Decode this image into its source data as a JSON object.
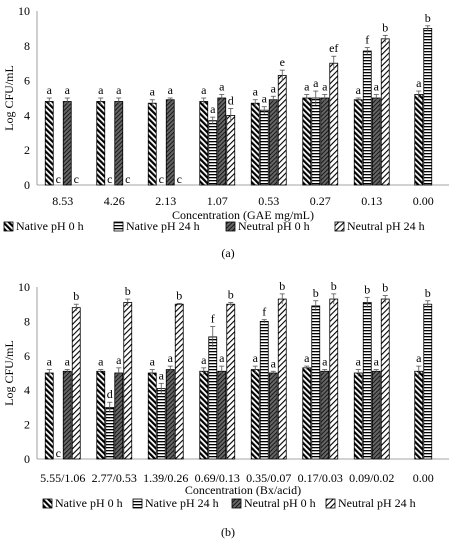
{
  "chart_data": [
    {
      "type": "bar",
      "panel_label": "(a)",
      "ylabel": "Log CFU/mL",
      "xlabel": "Concentration (GAE mg/mL)",
      "ylim": [
        0,
        10
      ],
      "yticks": [
        "0",
        "2",
        "4",
        "6",
        "8",
        "10"
      ],
      "categories": [
        "8.53",
        "4.26",
        "2.13",
        "1.07",
        "0.53",
        "0.27",
        "0.13",
        "0.00"
      ],
      "legend_position": "bottom",
      "series": [
        {
          "name": "Native pH 0 h",
          "pattern": "native0",
          "values": [
            4.8,
            4.8,
            4.7,
            4.8,
            4.7,
            5.0,
            4.9,
            5.2
          ],
          "errors": [
            0.2,
            0.2,
            0.2,
            0.2,
            0.2,
            0.2,
            0.1,
            0.2
          ],
          "labels": [
            "a",
            "a",
            "a",
            "a",
            "a",
            "a",
            "a",
            "a"
          ]
        },
        {
          "name": "Native pH 24 h",
          "pattern": "native24",
          "values": [
            0,
            0,
            0,
            3.7,
            4.3,
            5.0,
            7.7,
            9.0
          ],
          "errors": [
            0,
            0,
            0,
            0.2,
            0.2,
            0.4,
            0.2,
            0.15
          ],
          "labels": [
            "c",
            "c",
            "c",
            "a",
            "a",
            "a",
            "f",
            "b"
          ]
        },
        {
          "name": "Neutral pH 0 h",
          "pattern": "neutral0",
          "values": [
            4.8,
            4.8,
            4.9,
            5.0,
            4.9,
            5.0,
            5.0,
            null
          ],
          "errors": [
            0.2,
            0.2,
            0.1,
            0.2,
            0.2,
            0.2,
            0.2,
            0
          ],
          "labels": [
            "a",
            "a",
            "a",
            "a",
            "a",
            "a",
            "a",
            ""
          ]
        },
        {
          "name": "Neutral pH 24 h",
          "pattern": "neutral24",
          "values": [
            0,
            0,
            0,
            4.0,
            6.3,
            7.0,
            8.4,
            null
          ],
          "errors": [
            0,
            0,
            0,
            0.4,
            0.3,
            0.4,
            0.2,
            0
          ],
          "labels": [
            "c",
            "c",
            "c",
            "d",
            "e",
            "ef",
            "b",
            ""
          ]
        }
      ]
    },
    {
      "type": "bar",
      "panel_label": "(b)",
      "ylabel": "Log CFU/mL",
      "xlabel": "Concentration (Bx/acid)",
      "ylim": [
        0,
        10
      ],
      "yticks": [
        "0",
        "2",
        "4",
        "6",
        "8",
        "10"
      ],
      "categories": [
        "5.55/1.06",
        "2.77/0.53",
        "1.39/0.26",
        "0.69/0.13",
        "0.35/0.07",
        "0.17/0.03",
        "0.09/0.02",
        "0.00"
      ],
      "legend_position": "bottom",
      "series": [
        {
          "name": "Native pH 0 h",
          "pattern": "native0",
          "values": [
            5.0,
            5.1,
            5.0,
            5.1,
            5.2,
            5.3,
            5.0,
            5.1
          ],
          "errors": [
            0.2,
            0.1,
            0.2,
            0.2,
            0.2,
            0.1,
            0.2,
            0.3
          ],
          "labels": [
            "a",
            "a",
            "a",
            "a",
            "a",
            "a",
            "a",
            "a"
          ]
        },
        {
          "name": "Native pH 24 h",
          "pattern": "native24",
          "values": [
            0,
            3.0,
            4.1,
            7.1,
            8.0,
            8.9,
            9.1,
            9.0
          ],
          "errors": [
            0,
            0.3,
            0.3,
            0.6,
            0.1,
            0.3,
            0.3,
            0.2
          ],
          "labels": [
            "c",
            "d",
            "a",
            "f",
            "f",
            "b",
            "b",
            "b"
          ]
        },
        {
          "name": "Neutral pH 0 h",
          "pattern": "neutral0",
          "values": [
            5.1,
            5.0,
            5.2,
            5.1,
            5.0,
            5.1,
            5.1,
            null
          ],
          "errors": [
            0.1,
            0.3,
            0.2,
            0.3,
            0.1,
            0.1,
            0.1,
            0
          ],
          "labels": [
            "a",
            "a",
            "a",
            "a",
            "a",
            "a",
            "a",
            ""
          ]
        },
        {
          "name": "Neutral pH 24 h",
          "pattern": "neutral24",
          "values": [
            8.8,
            9.1,
            9.0,
            9.0,
            9.3,
            9.3,
            9.3,
            null
          ],
          "errors": [
            0.2,
            0.2,
            0.05,
            0.1,
            0.3,
            0.3,
            0.2,
            0
          ],
          "labels": [
            "b",
            "b",
            "b",
            "b",
            "b",
            "b",
            "b",
            ""
          ]
        }
      ]
    }
  ]
}
